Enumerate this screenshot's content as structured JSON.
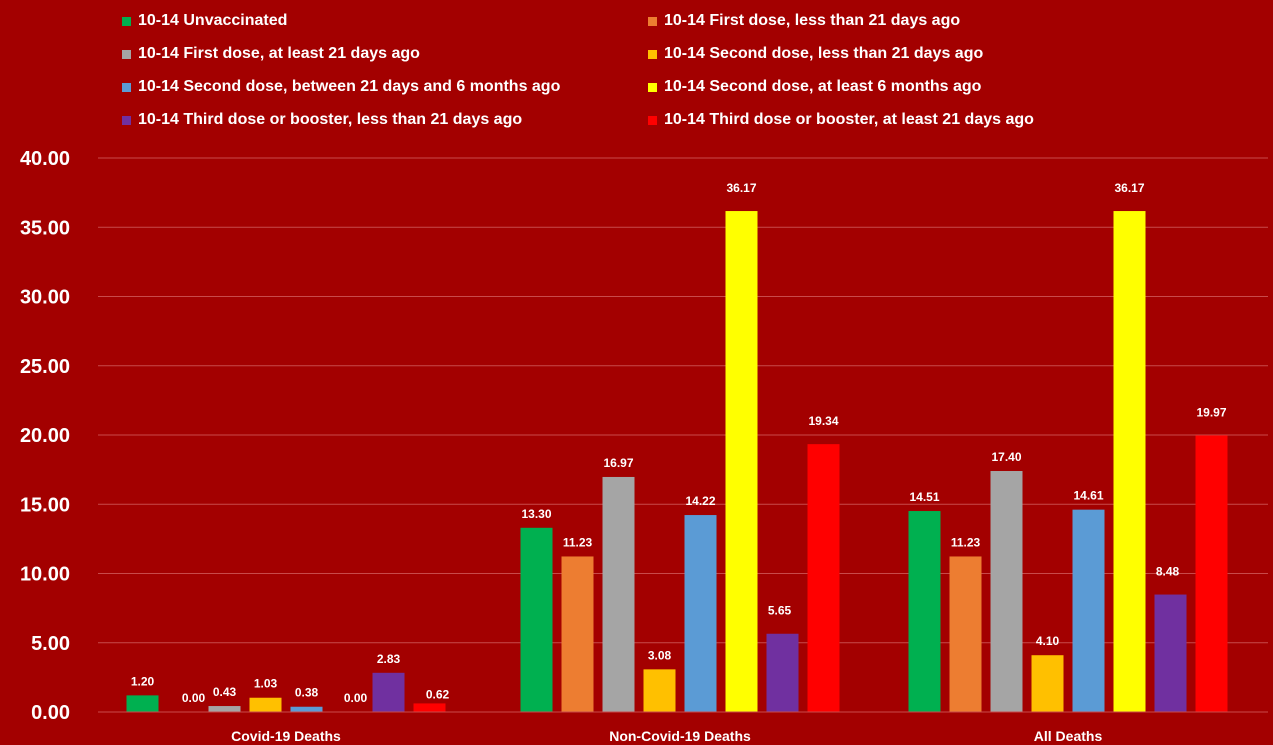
{
  "chart_data": {
    "type": "bar",
    "categories": [
      "Covid-19 Deaths",
      "Non-Covid-19 Deaths",
      "All Deaths"
    ],
    "series": [
      {
        "name": "10-14 Unvaccinated",
        "color": "#00b050",
        "values": [
          1.2,
          13.3,
          14.51
        ]
      },
      {
        "name": "10-14 First dose, less than 21 days ago",
        "color": "#ed7d31",
        "values": [
          0.0,
          11.23,
          11.23
        ]
      },
      {
        "name": "10-14 First dose, at least 21 days ago",
        "color": "#a5a5a5",
        "values": [
          0.43,
          16.97,
          17.4
        ]
      },
      {
        "name": "10-14 Second dose, less than 21 days ago",
        "color": "#ffc000",
        "values": [
          1.03,
          3.08,
          4.1
        ]
      },
      {
        "name": "10-14 Second dose, between 21 days and 6 months ago",
        "color": "#5b9bd5",
        "values": [
          0.38,
          14.22,
          14.61
        ]
      },
      {
        "name": "10-14 Second dose, at least 6 months ago",
        "color": "#ffff00",
        "values": [
          0.0,
          36.17,
          36.17
        ]
      },
      {
        "name": "10-14 Third dose or booster, less than 21 days ago",
        "color": "#7030a0",
        "values": [
          2.83,
          5.65,
          8.48
        ]
      },
      {
        "name": "10-14 Third dose or booster, at least 21 days ago",
        "color": "#ff0000",
        "values": [
          0.62,
          19.34,
          19.97
        ]
      }
    ],
    "value_labels": [
      [
        "1.20",
        "13.30",
        "14.51"
      ],
      [
        "0.00",
        "11.23",
        "11.23"
      ],
      [
        "0.43",
        "16.97",
        "17.40"
      ],
      [
        "1.03",
        "3.08",
        "4.10"
      ],
      [
        "0.38",
        "14.22",
        "14.61"
      ],
      [
        "0.00",
        "36.17",
        "36.17"
      ],
      [
        "2.83",
        "5.65",
        "8.48"
      ],
      [
        "0.62",
        "19.34",
        "19.97"
      ]
    ],
    "ylim": [
      0,
      40
    ],
    "y_ticks": [
      "0.00",
      "5.00",
      "10.00",
      "15.00",
      "20.00",
      "25.00",
      "30.00",
      "35.00",
      "40.00"
    ],
    "grid": true,
    "legend_position": "top",
    "title": "",
    "xlabel": "",
    "ylabel": ""
  },
  "colors": {
    "background": "#a30000",
    "gridline": "#c84a4a",
    "text": "#ffffff"
  }
}
